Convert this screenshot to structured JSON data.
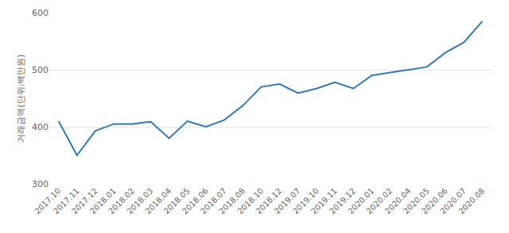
{
  "chart_data": {
    "type": "line",
    "y_label": "거래금액(단위:백만원)",
    "categories": [
      "2017.10",
      "2017.11",
      "2017.12",
      "2018.01",
      "2018.02",
      "2018.03",
      "2018.04",
      "2018.05",
      "2018.06",
      "2018.07",
      "2018.08",
      "2018.10",
      "2018.12",
      "2019.07",
      "2019.10",
      "2019.11",
      "2019.12",
      "2020.01",
      "2020.02",
      "2020.04",
      "2020.05",
      "2020.06",
      "2020.07",
      "2020.08"
    ],
    "values": [
      410,
      350,
      393,
      405,
      405,
      409,
      380,
      410,
      400,
      412,
      437,
      470,
      475,
      459,
      467,
      478,
      467,
      490,
      495,
      500,
      505,
      530,
      548,
      585
    ],
    "color": "#2b7bba",
    "ylim": [
      300,
      600
    ],
    "yticks": [
      300,
      400,
      500,
      600
    ],
    "grid": true
  }
}
